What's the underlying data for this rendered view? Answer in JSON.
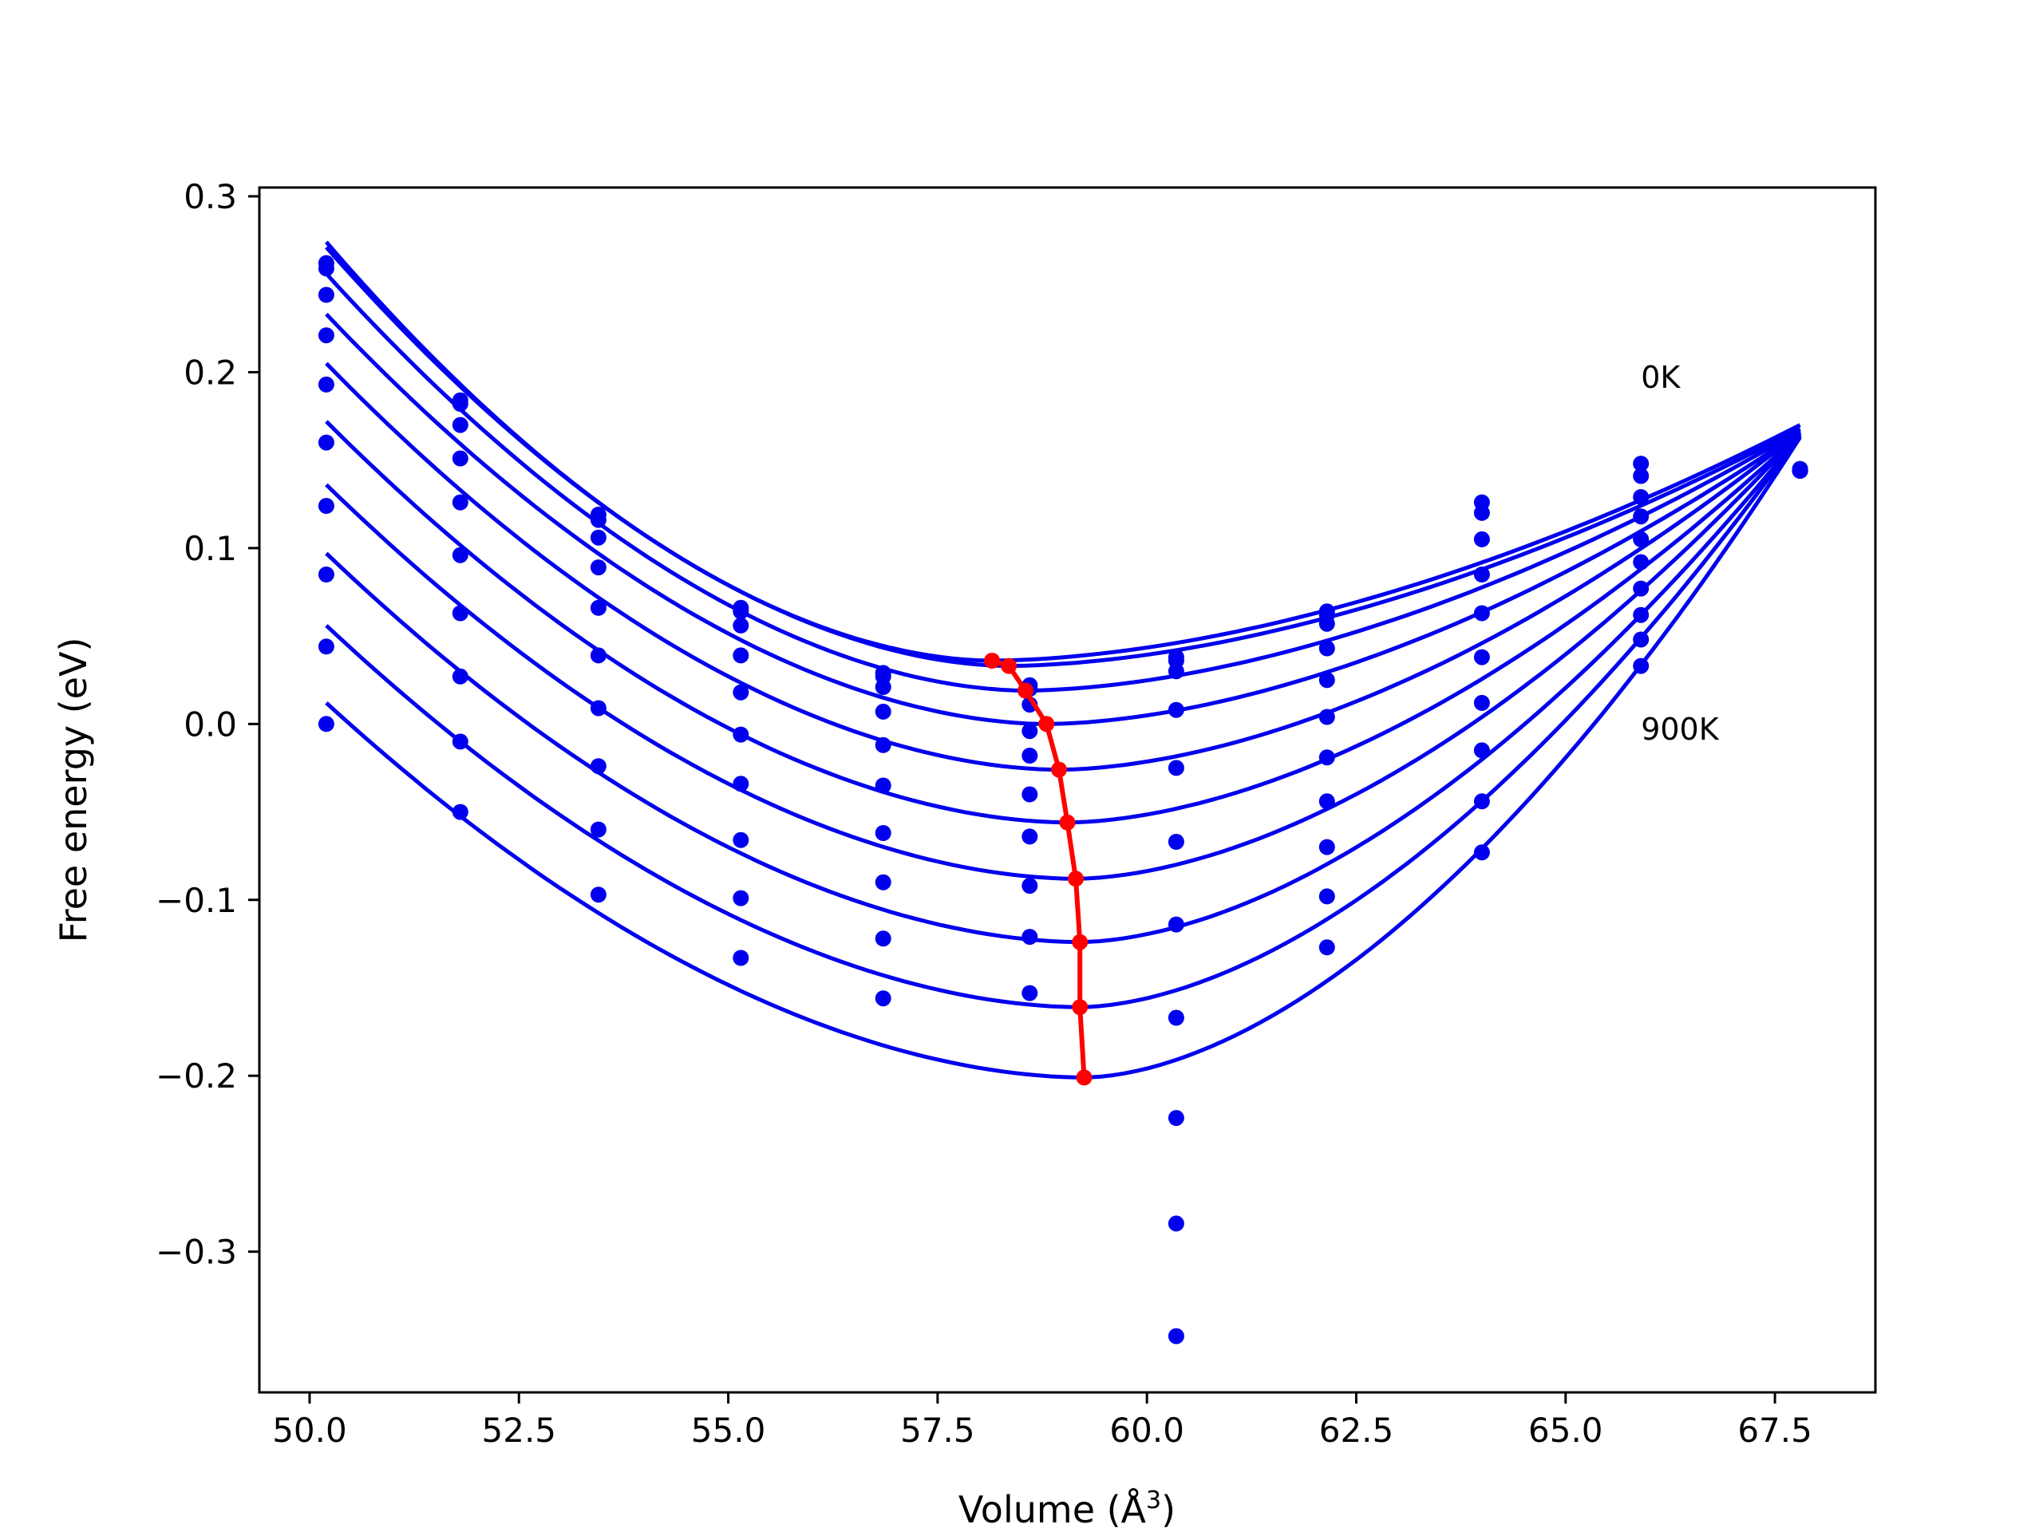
{
  "chart_data": {
    "type": "line",
    "xlabel": "Volume (Å",
    "xlabel_sup": "3",
    "xlabel_close": ")",
    "ylabel": "Free energy (eV)",
    "xlim": [
      49.4,
      68.7
    ],
    "ylim": [
      -0.38,
      0.305
    ],
    "xticks": [
      50.0,
      52.5,
      55.0,
      57.5,
      60.0,
      62.5,
      65.0,
      67.5
    ],
    "xtick_labels": [
      "50.0",
      "52.5",
      "55.0",
      "57.5",
      "60.0",
      "62.5",
      "65.0",
      "67.5"
    ],
    "yticks": [
      -0.3,
      -0.2,
      -0.1,
      0.0,
      0.1,
      0.2,
      0.3
    ],
    "ytick_labels": [
      "−0.3",
      "−0.2",
      "−0.1",
      "0.0",
      "0.1",
      "0.2",
      "0.3"
    ],
    "grid": false,
    "legend": "none",
    "colors": {
      "curves": "#0000ee",
      "points": "#0000ee",
      "minimum_path": "#ff0000"
    },
    "annotations": [
      {
        "text": "0K",
        "x": 65.9,
        "y": 0.197
      },
      {
        "text": "900K",
        "x": 65.9,
        "y": -0.003
      }
    ],
    "volumes": [
      50.2,
      51.8,
      53.45,
      55.15,
      56.85,
      58.6,
      60.35,
      62.15,
      64.0,
      65.9,
      67.8
    ],
    "series": [
      {
        "values": [
          0.262,
          0.184,
          0.119,
          0.066,
          0.029,
          0.022,
          0.038,
          0.064,
          0.126,
          0.148,
          0.145
        ]
      },
      {
        "values": [
          0.259,
          0.182,
          0.116,
          0.064,
          0.027,
          0.02,
          0.036,
          0.062,
          0.12,
          0.141,
          0.145
        ]
      },
      {
        "values": [
          0.244,
          0.17,
          0.106,
          0.056,
          0.021,
          0.011,
          0.03,
          0.057,
          0.105,
          0.129,
          0.144
        ]
      },
      {
        "values": [
          0.221,
          0.151,
          0.089,
          0.039,
          0.007,
          -0.004,
          0.008,
          0.043,
          0.085,
          0.118,
          0.144
        ]
      },
      {
        "values": [
          0.193,
          0.126,
          0.066,
          0.018,
          -0.012,
          -0.018,
          -0.025,
          0.025,
          0.063,
          0.105,
          0.144
        ]
      },
      {
        "values": [
          0.16,
          0.096,
          0.039,
          -0.006,
          -0.035,
          -0.04,
          -0.067,
          0.004,
          0.038,
          0.092,
          0.144
        ]
      },
      {
        "values": [
          0.124,
          0.063,
          0.009,
          -0.034,
          -0.062,
          -0.064,
          -0.114,
          -0.019,
          0.012,
          0.077,
          0.144
        ]
      },
      {
        "values": [
          0.085,
          0.027,
          -0.024,
          -0.066,
          -0.09,
          -0.092,
          -0.167,
          -0.044,
          -0.015,
          0.062,
          0.144
        ]
      },
      {
        "values": [
          0.044,
          -0.01,
          -0.06,
          -0.099,
          -0.122,
          -0.121,
          -0.224,
          -0.07,
          -0.044,
          0.048,
          0.144
        ]
      },
      {
        "values": [
          0.0,
          -0.05,
          -0.097,
          -0.133,
          -0.156,
          -0.153,
          -0.284,
          -0.098,
          -0.073,
          0.033,
          0.144
        ]
      },
      {
        "values": [
          null,
          null,
          null,
          null,
          null,
          null,
          -0.348,
          -0.127,
          null,
          null,
          null
        ]
      }
    ],
    "fits": [
      {
        "min_volume": 58.15,
        "min_energy": 0.036,
        "end_energy": 0.17
      },
      {
        "min_volume": 58.35,
        "min_energy": 0.033,
        "end_energy": 0.168
      },
      {
        "min_volume": 58.55,
        "min_energy": 0.019,
        "end_energy": 0.167
      },
      {
        "min_volume": 58.8,
        "min_energy": 0.0,
        "end_energy": 0.166
      },
      {
        "min_volume": 58.95,
        "min_energy": -0.026,
        "end_energy": 0.166
      },
      {
        "min_volume": 59.05,
        "min_energy": -0.056,
        "end_energy": 0.165
      },
      {
        "min_volume": 59.15,
        "min_energy": -0.088,
        "end_energy": 0.165
      },
      {
        "min_volume": 59.2,
        "min_energy": -0.124,
        "end_energy": 0.164
      },
      {
        "min_volume": 59.2,
        "min_energy": -0.161,
        "end_energy": 0.164
      },
      {
        "min_volume": 59.25,
        "min_energy": -0.201,
        "end_energy": 0.163
      }
    ]
  }
}
